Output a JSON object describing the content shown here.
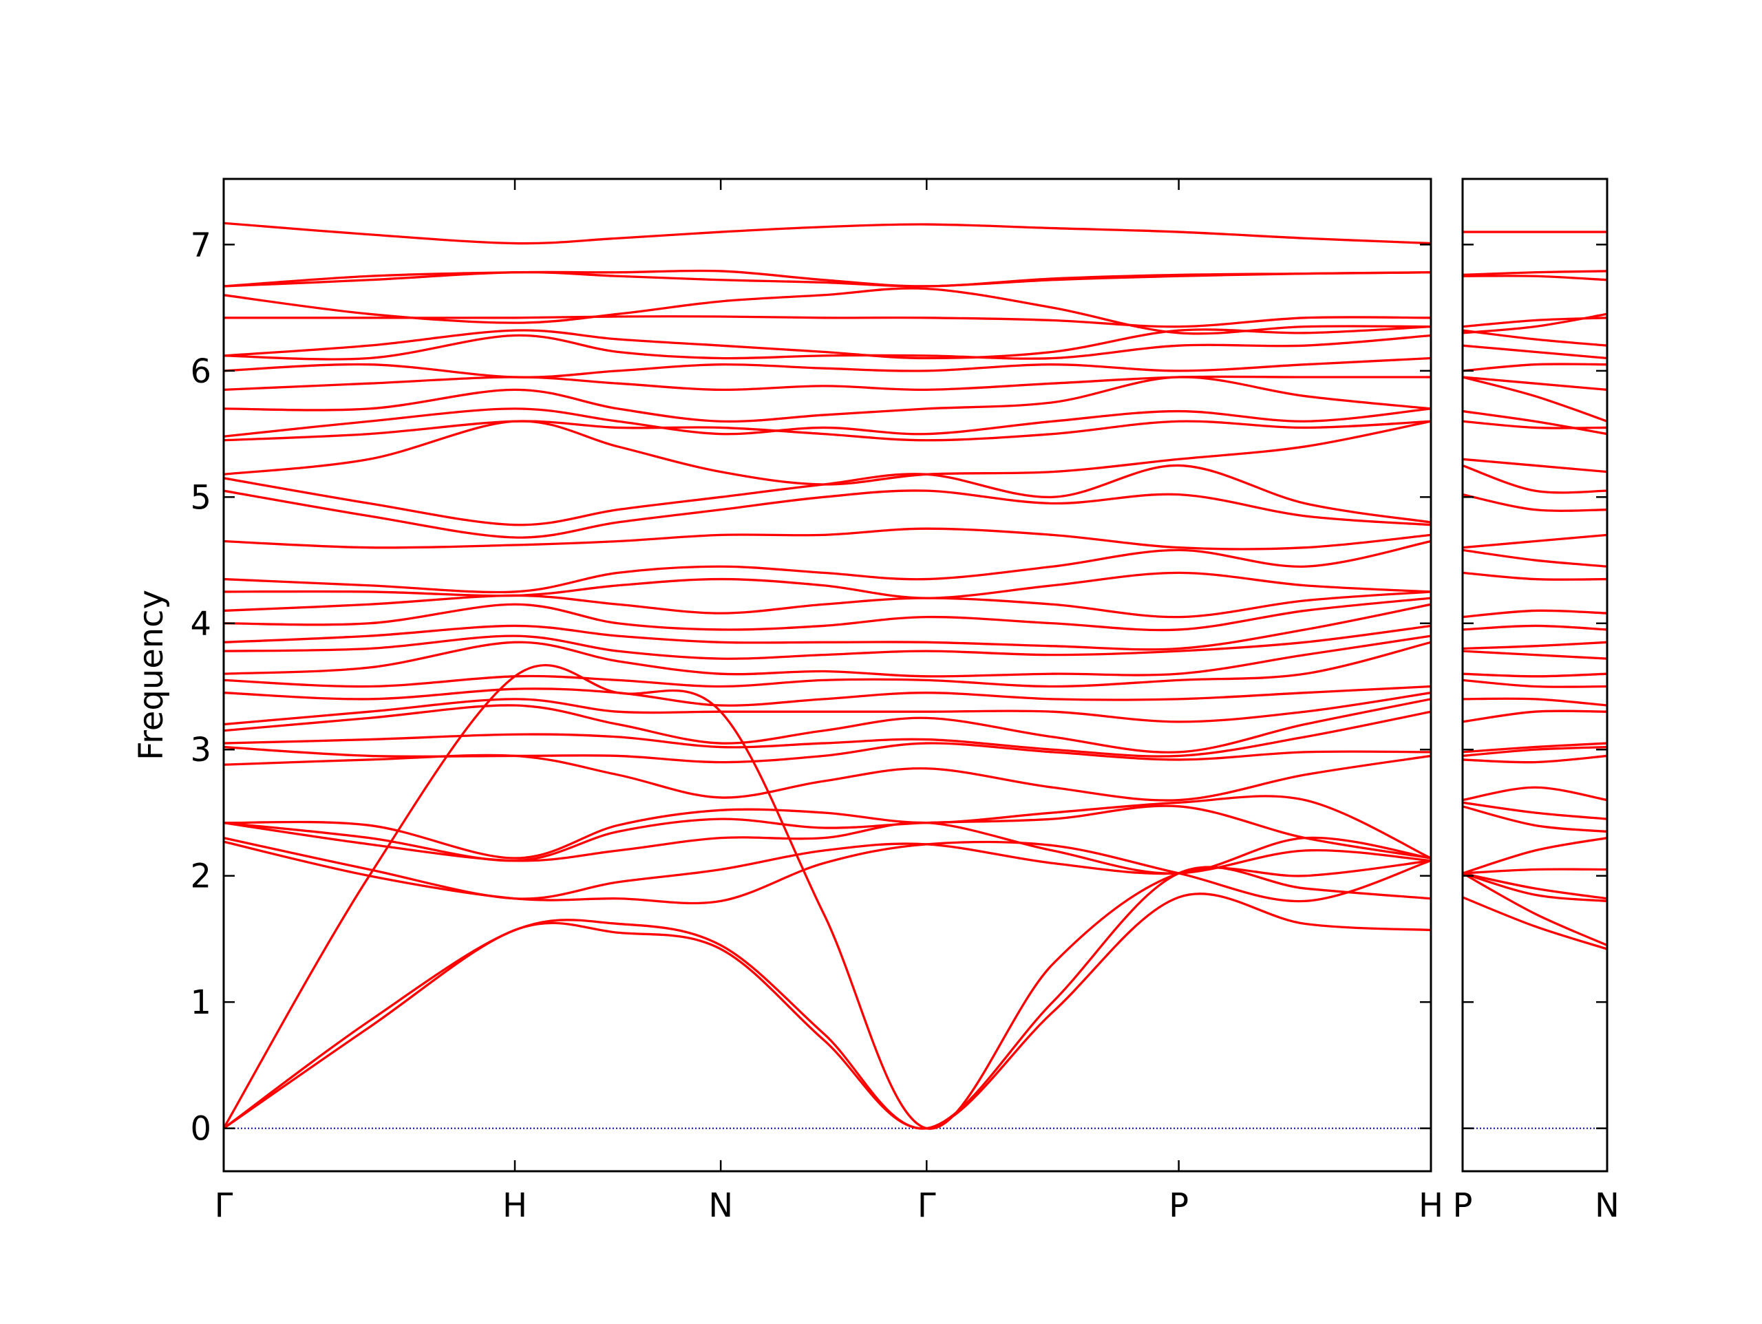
{
  "chart_data": [
    {
      "type": "line",
      "ylabel": "Frequency",
      "color": "#ff0000",
      "hline": {
        "value": 0,
        "color": "#0000aa"
      },
      "xlim": [
        0,
        4.1463
      ],
      "ylim": [
        -0.34,
        7.52
      ],
      "xticks": [
        {
          "value": 0,
          "label": "Γ"
        },
        {
          "value": 1,
          "label": "H"
        },
        {
          "value": 1.7071,
          "label": "N"
        },
        {
          "value": 2.4142,
          "label": "Γ"
        },
        {
          "value": 3.2802,
          "label": "P"
        },
        {
          "value": 4.1463,
          "label": "H"
        }
      ],
      "yticks": [
        0,
        1,
        2,
        3,
        4,
        5,
        6,
        7
      ],
      "x": [
        0,
        0.5,
        1,
        1.3536,
        1.7071,
        2.0607,
        2.4142,
        2.8472,
        3.2802,
        3.7133,
        4.1463
      ],
      "series": [
        {
          "values": [
            0,
            0.8,
            1.57,
            1.55,
            1.42,
            0.7,
            0,
            0.92,
            1.83,
            1.62,
            1.57
          ]
        },
        {
          "values": [
            0,
            0.85,
            1.57,
            1.62,
            1.45,
            0.75,
            0,
            1.0,
            2.02,
            1.9,
            1.82
          ]
        },
        {
          "values": [
            0,
            2.0,
            3.58,
            3.45,
            3.3,
            1.7,
            0,
            1.3,
            2.02,
            2.0,
            2.12
          ]
        },
        {
          "values": [
            2.27,
            2.0,
            1.82,
            1.82,
            1.8,
            2.1,
            2.25,
            2.24,
            2.02,
            1.8,
            2.12
          ]
        },
        {
          "values": [
            2.3,
            2.05,
            1.82,
            1.95,
            2.05,
            2.2,
            2.25,
            2.1,
            2.02,
            2.2,
            2.12
          ]
        },
        {
          "values": [
            2.42,
            2.25,
            2.12,
            2.2,
            2.3,
            2.3,
            2.42,
            2.2,
            2.02,
            2.3,
            2.14
          ]
        },
        {
          "values": [
            2.42,
            2.3,
            2.12,
            2.35,
            2.45,
            2.38,
            2.42,
            2.45,
            2.55,
            2.3,
            2.14
          ]
        },
        {
          "values": [
            2.42,
            2.4,
            2.14,
            2.4,
            2.52,
            2.5,
            2.42,
            2.5,
            2.58,
            2.6,
            2.14
          ]
        },
        {
          "values": [
            2.88,
            2.92,
            2.95,
            2.8,
            2.62,
            2.75,
            2.85,
            2.7,
            2.6,
            2.8,
            2.95
          ]
        },
        {
          "values": [
            3.02,
            2.95,
            2.95,
            2.95,
            2.9,
            2.95,
            3.05,
            2.98,
            2.92,
            2.98,
            2.98
          ]
        },
        {
          "values": [
            3.05,
            3.08,
            3.12,
            3.1,
            3.02,
            3.05,
            3.08,
            3.0,
            2.95,
            3.1,
            3.3
          ]
        },
        {
          "values": [
            3.15,
            3.25,
            3.35,
            3.2,
            3.05,
            3.15,
            3.25,
            3.1,
            2.98,
            3.2,
            3.4
          ]
        },
        {
          "values": [
            3.2,
            3.3,
            3.4,
            3.3,
            3.3,
            3.3,
            3.3,
            3.3,
            3.22,
            3.3,
            3.45
          ]
        },
        {
          "values": [
            3.45,
            3.4,
            3.48,
            3.45,
            3.35,
            3.4,
            3.45,
            3.4,
            3.4,
            3.45,
            3.5
          ]
        },
        {
          "values": [
            3.55,
            3.5,
            3.58,
            3.55,
            3.5,
            3.55,
            3.55,
            3.5,
            3.55,
            3.6,
            3.85
          ]
        },
        {
          "values": [
            3.6,
            3.65,
            3.85,
            3.7,
            3.6,
            3.62,
            3.58,
            3.6,
            3.6,
            3.75,
            3.9
          ]
        },
        {
          "values": [
            3.78,
            3.8,
            3.9,
            3.78,
            3.72,
            3.75,
            3.78,
            3.75,
            3.78,
            3.85,
            3.98
          ]
        },
        {
          "values": [
            3.85,
            3.9,
            3.98,
            3.9,
            3.85,
            3.85,
            3.85,
            3.82,
            3.8,
            3.95,
            4.15
          ]
        },
        {
          "values": [
            4.0,
            4.0,
            4.15,
            4.0,
            3.95,
            3.98,
            4.05,
            4.0,
            3.95,
            4.1,
            4.2
          ]
        },
        {
          "values": [
            4.1,
            4.15,
            4.22,
            4.15,
            4.08,
            4.15,
            4.2,
            4.15,
            4.05,
            4.18,
            4.25
          ]
        },
        {
          "values": [
            4.25,
            4.25,
            4.22,
            4.3,
            4.35,
            4.3,
            4.2,
            4.3,
            4.4,
            4.3,
            4.25
          ]
        },
        {
          "values": [
            4.35,
            4.3,
            4.25,
            4.4,
            4.45,
            4.4,
            4.35,
            4.45,
            4.58,
            4.45,
            4.65
          ]
        },
        {
          "values": [
            4.65,
            4.6,
            4.62,
            4.65,
            4.7,
            4.7,
            4.75,
            4.7,
            4.6,
            4.6,
            4.7
          ]
        },
        {
          "values": [
            5.05,
            4.85,
            4.68,
            4.8,
            4.9,
            5.0,
            5.05,
            4.95,
            5.02,
            4.85,
            4.78
          ]
        },
        {
          "values": [
            5.15,
            4.95,
            4.78,
            4.9,
            5.0,
            5.1,
            5.18,
            5.0,
            5.25,
            4.95,
            4.8
          ]
        },
        {
          "values": [
            5.18,
            5.3,
            5.6,
            5.4,
            5.2,
            5.1,
            5.18,
            5.2,
            5.3,
            5.4,
            5.6
          ]
        },
        {
          "values": [
            5.45,
            5.5,
            5.6,
            5.55,
            5.55,
            5.5,
            5.45,
            5.5,
            5.6,
            5.55,
            5.6
          ]
        },
        {
          "values": [
            5.48,
            5.6,
            5.7,
            5.6,
            5.5,
            5.55,
            5.5,
            5.6,
            5.68,
            5.6,
            5.7
          ]
        },
        {
          "values": [
            5.7,
            5.7,
            5.85,
            5.7,
            5.6,
            5.65,
            5.7,
            5.75,
            5.95,
            5.8,
            5.7
          ]
        },
        {
          "values": [
            5.85,
            5.9,
            5.95,
            5.9,
            5.85,
            5.88,
            5.85,
            5.9,
            5.95,
            5.95,
            5.95
          ]
        },
        {
          "values": [
            6.0,
            6.05,
            5.95,
            6.0,
            6.05,
            6.02,
            6.0,
            6.05,
            6.0,
            6.05,
            6.1
          ]
        },
        {
          "values": [
            6.12,
            6.1,
            6.28,
            6.15,
            6.1,
            6.12,
            6.12,
            6.1,
            6.2,
            6.2,
            6.28
          ]
        },
        {
          "values": [
            6.12,
            6.2,
            6.32,
            6.25,
            6.2,
            6.15,
            6.1,
            6.15,
            6.32,
            6.3,
            6.35
          ]
        },
        {
          "values": [
            6.42,
            6.42,
            6.42,
            6.43,
            6.43,
            6.42,
            6.42,
            6.4,
            6.35,
            6.42,
            6.42
          ]
        },
        {
          "values": [
            6.6,
            6.45,
            6.38,
            6.45,
            6.55,
            6.6,
            6.65,
            6.5,
            6.3,
            6.35,
            6.35
          ]
        },
        {
          "values": [
            6.67,
            6.72,
            6.78,
            6.75,
            6.72,
            6.7,
            6.67,
            6.72,
            6.75,
            6.77,
            6.78
          ]
        },
        {
          "values": [
            6.67,
            6.75,
            6.78,
            6.78,
            6.79,
            6.72,
            6.67,
            6.73,
            6.76,
            6.77,
            6.78
          ]
        },
        {
          "values": [
            7.17,
            7.08,
            7.01,
            7.05,
            7.1,
            7.14,
            7.16,
            7.13,
            7.1,
            7.05,
            7.01
          ]
        }
      ]
    },
    {
      "type": "line",
      "color": "#ff0000",
      "hline": {
        "value": 0,
        "color": "#0000aa"
      },
      "xlim": [
        4.1463,
        4.6463
      ],
      "ylim": [
        -0.34,
        7.52
      ],
      "xticks": [
        {
          "value": 4.1463,
          "label": "P"
        },
        {
          "value": 4.6463,
          "label": "N"
        }
      ],
      "yticks": [
        0,
        1,
        2,
        3,
        4,
        5,
        6,
        7
      ],
      "x": [
        4.1463,
        4.3963,
        4.6463
      ],
      "series": [
        {
          "values": [
            1.83,
            1.6,
            1.42
          ]
        },
        {
          "values": [
            2.02,
            1.7,
            1.45
          ]
        },
        {
          "values": [
            2.02,
            1.85,
            1.8
          ]
        },
        {
          "values": [
            2.02,
            1.9,
            1.82
          ]
        },
        {
          "values": [
            2.02,
            2.05,
            2.05
          ]
        },
        {
          "values": [
            2.02,
            2.2,
            2.3
          ]
        },
        {
          "values": [
            2.55,
            2.4,
            2.35
          ]
        },
        {
          "values": [
            2.58,
            2.5,
            2.45
          ]
        },
        {
          "values": [
            2.6,
            2.7,
            2.6
          ]
        },
        {
          "values": [
            2.92,
            2.9,
            2.95
          ]
        },
        {
          "values": [
            2.95,
            3.0,
            3.02
          ]
        },
        {
          "values": [
            2.98,
            3.02,
            3.05
          ]
        },
        {
          "values": [
            3.22,
            3.3,
            3.3
          ]
        },
        {
          "values": [
            3.4,
            3.4,
            3.35
          ]
        },
        {
          "values": [
            3.55,
            3.5,
            3.5
          ]
        },
        {
          "values": [
            3.6,
            3.58,
            3.6
          ]
        },
        {
          "values": [
            3.78,
            3.75,
            3.72
          ]
        },
        {
          "values": [
            3.8,
            3.82,
            3.85
          ]
        },
        {
          "values": [
            3.95,
            3.98,
            3.95
          ]
        },
        {
          "values": [
            4.05,
            4.1,
            4.08
          ]
        },
        {
          "values": [
            4.4,
            4.35,
            4.35
          ]
        },
        {
          "values": [
            4.58,
            4.5,
            4.45
          ]
        },
        {
          "values": [
            4.6,
            4.65,
            4.7
          ]
        },
        {
          "values": [
            5.02,
            4.9,
            4.9
          ]
        },
        {
          "values": [
            5.25,
            5.05,
            5.05
          ]
        },
        {
          "values": [
            5.3,
            5.25,
            5.2
          ]
        },
        {
          "values": [
            5.6,
            5.55,
            5.55
          ]
        },
        {
          "values": [
            5.68,
            5.6,
            5.5
          ]
        },
        {
          "values": [
            5.95,
            5.8,
            5.6
          ]
        },
        {
          "values": [
            5.95,
            5.9,
            5.85
          ]
        },
        {
          "values": [
            6.0,
            6.05,
            6.05
          ]
        },
        {
          "values": [
            6.2,
            6.15,
            6.1
          ]
        },
        {
          "values": [
            6.32,
            6.25,
            6.2
          ]
        },
        {
          "values": [
            6.35,
            6.4,
            6.42
          ]
        },
        {
          "values": [
            6.3,
            6.35,
            6.45
          ]
        },
        {
          "values": [
            6.75,
            6.75,
            6.72
          ]
        },
        {
          "values": [
            6.76,
            6.78,
            6.79
          ]
        },
        {
          "values": [
            7.1,
            7.1,
            7.1
          ]
        }
      ]
    }
  ]
}
